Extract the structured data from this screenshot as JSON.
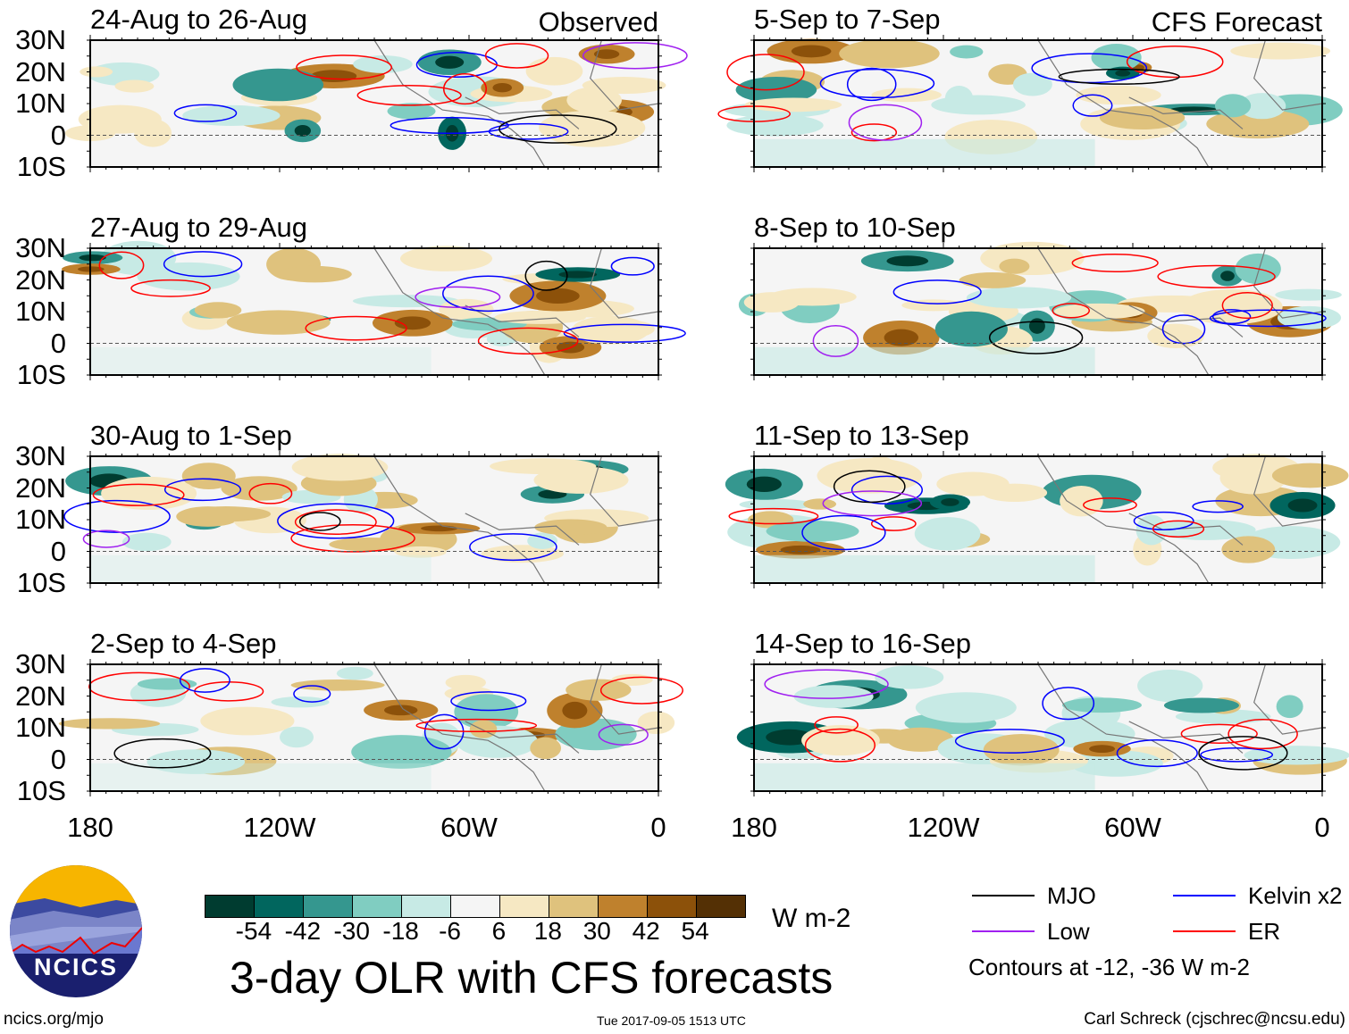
{
  "figure": {
    "title": "3-day OLR with CFS forecasts",
    "timestamp": "Tue 2017-09-05 1513 UTC",
    "credit": "Carl Schreck (cjschrec@ncsu.edu)",
    "site": "ncics.org/mjo",
    "logo_text": "NCICS",
    "observed_label": "Observed",
    "forecast_label": "CFS Forecast"
  },
  "panels": {
    "left": [
      "24-Aug to 26-Aug",
      "27-Aug to 29-Aug",
      "30-Aug to 1-Sep",
      "2-Sep to 4-Sep"
    ],
    "right": [
      "5-Sep to 7-Sep",
      "8-Sep to 10-Sep",
      "11-Sep to 13-Sep",
      "14-Sep to 16-Sep"
    ]
  },
  "axes": {
    "lat_labels": [
      "30N",
      "20N",
      "10N",
      "0",
      "10S"
    ],
    "lon_labels": [
      "180",
      "120W",
      "60W",
      "0"
    ]
  },
  "colorbar": {
    "units": "W m-2",
    "labels": [
      "-54",
      "-42",
      "-30",
      "-18",
      "-6",
      "6",
      "18",
      "30",
      "42",
      "54"
    ],
    "colors": [
      "#003c30",
      "#01665e",
      "#35978f",
      "#80cdc1",
      "#c7eae5",
      "#f5f5f5",
      "#f6e8c3",
      "#dfc27d",
      "#bf812d",
      "#8c510a",
      "#543005"
    ]
  },
  "legend": {
    "items": [
      {
        "label": "MJO",
        "color": "#000000"
      },
      {
        "label": "Kelvin x2",
        "color": "#0000ff"
      },
      {
        "label": "Low",
        "color": "#a020f0"
      },
      {
        "label": "ER",
        "color": "#ff0000"
      }
    ],
    "note": "Contours at -12, -36 W m-2"
  }
}
